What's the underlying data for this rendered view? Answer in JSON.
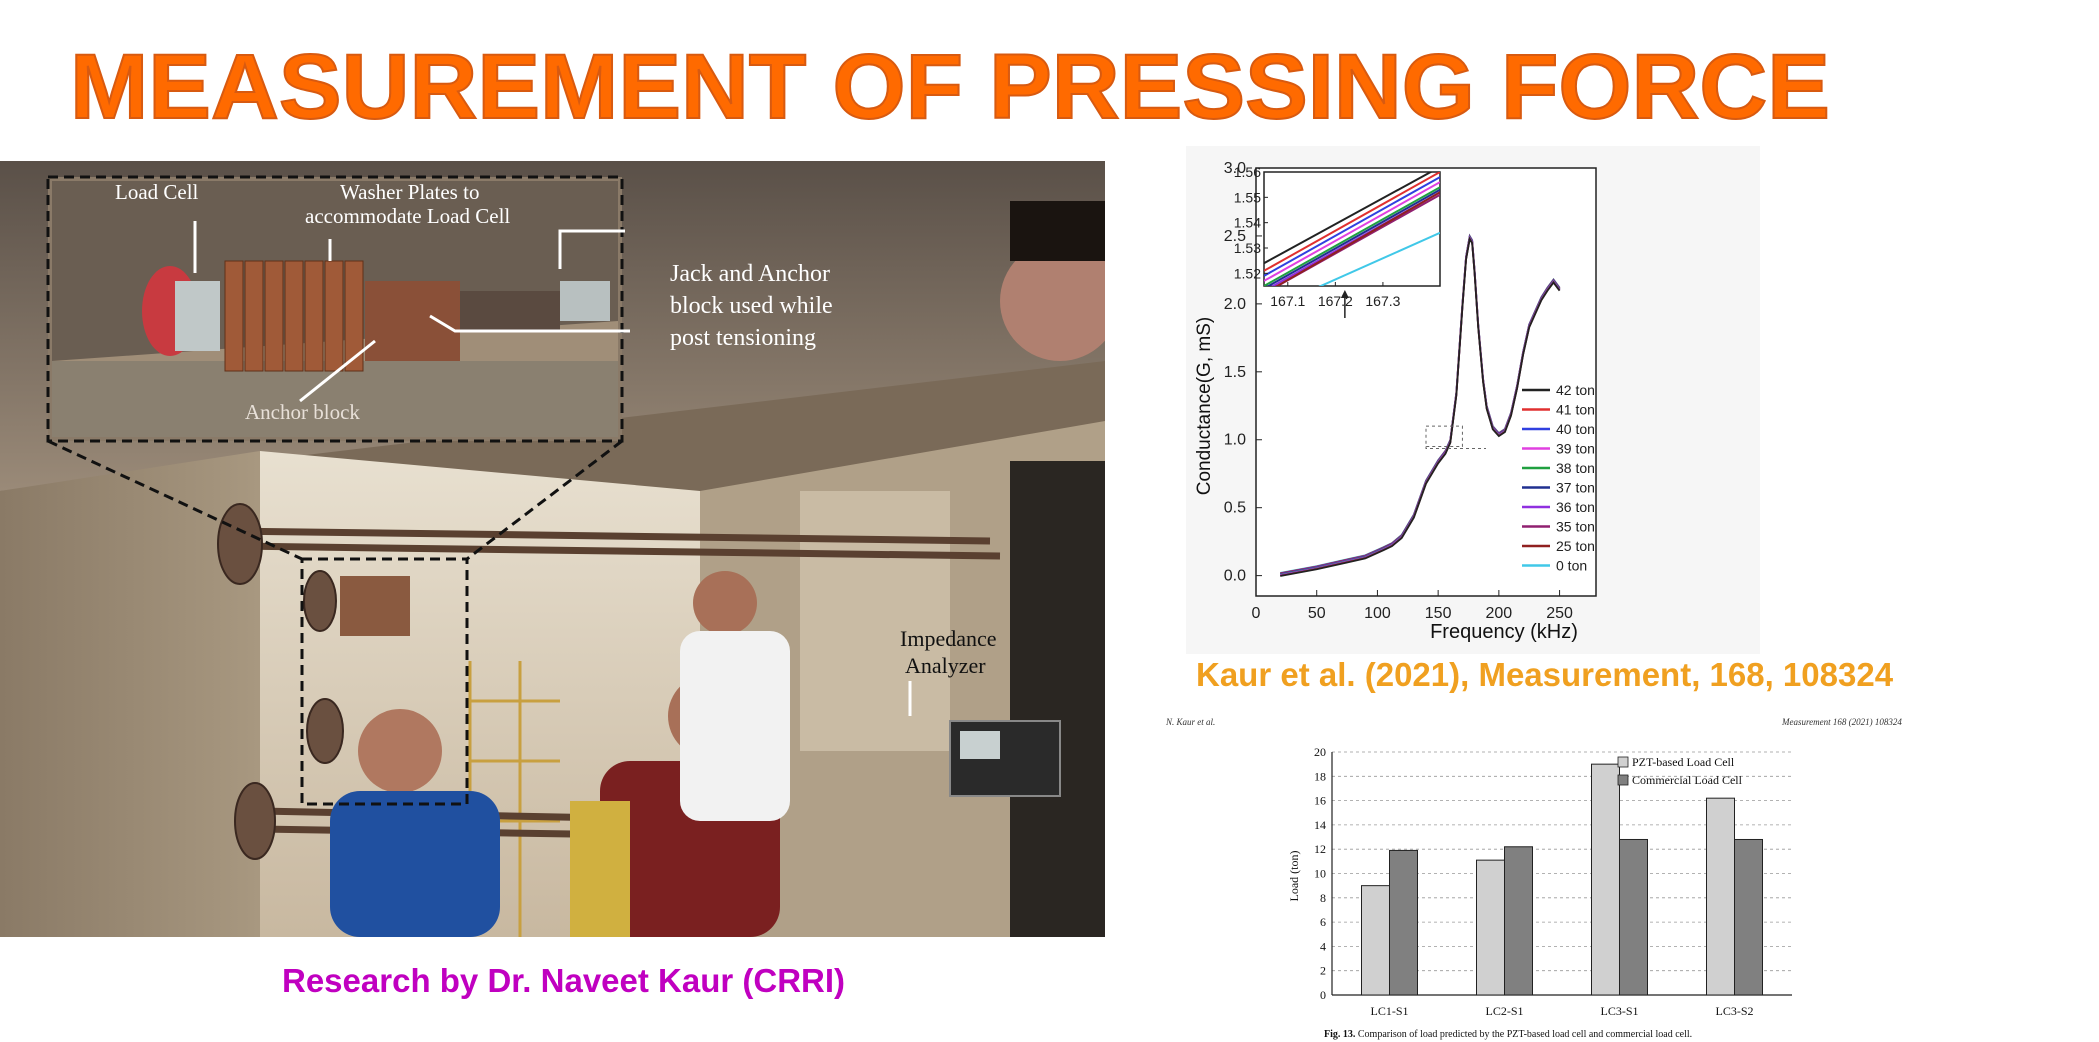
{
  "slide": {
    "title": "MEASUREMENT OF PRESSING FORCE",
    "caption_left": "Research by Dr. Naveet Kaur (CRRI)",
    "citation": "Kaur et al. (2021), Measurement, 168, 108324",
    "colors": {
      "title": "#ff6a00",
      "title_stroke": "#d85a10",
      "caption_left": "#c000c0",
      "citation": "#f0a020"
    }
  },
  "photo": {
    "labels": {
      "load_cell": "Load Cell",
      "washer_line1": "Washer Plates to",
      "washer_line2": "accommodate Load Cell",
      "jack_line1": "Jack and Anchor",
      "jack_line2": "block used while",
      "jack_line3": "post tensioning",
      "anchor_block": "Anchor block",
      "impedance_line1": "Impedance",
      "impedance_line2": "Analyzer"
    }
  },
  "paper": {
    "header_left": "N. Kaur et al.",
    "header_right": "Measurement 168 (2021) 108324",
    "fig_label": "Fig. 13.",
    "fig_caption": "Comparison of load predicted by the PZT-based load cell and commercial load cell."
  },
  "chart_data": [
    {
      "type": "line",
      "xlabel": "Frequency (kHz)",
      "ylabel": "Conductance(G, mS)",
      "xlim": [
        0,
        280
      ],
      "ylim": [
        -0.15,
        3.0
      ],
      "xticks": [
        "0",
        "50",
        "100",
        "150",
        "200",
        "250"
      ],
      "yticks": [
        "0.0",
        "0.5",
        "1.0",
        "1.5",
        "2.0",
        "2.5",
        "3.0"
      ],
      "legend_position": "right",
      "series": [
        {
          "name": "42 ton",
          "color": "#222222"
        },
        {
          "name": "41 ton",
          "color": "#e03030"
        },
        {
          "name": "40 ton",
          "color": "#3040e0"
        },
        {
          "name": "39 ton",
          "color": "#e040e0"
        },
        {
          "name": "38 ton",
          "color": "#20a040"
        },
        {
          "name": "37 ton",
          "color": "#203090"
        },
        {
          "name": "36 ton",
          "color": "#9030e0"
        },
        {
          "name": "35 ton",
          "color": "#902070"
        },
        {
          "name": "25 ton",
          "color": "#902020"
        },
        {
          "name": "0 ton",
          "color": "#40c8e8"
        }
      ],
      "curve": {
        "x": [
          20,
          50,
          75,
          90,
          100,
          105,
          112,
          120,
          130,
          140,
          150,
          156,
          160,
          165,
          170,
          173,
          176,
          178,
          180,
          183,
          187,
          190,
          195,
          200,
          205,
          210,
          215,
          220,
          225,
          230,
          235,
          240,
          245,
          250
        ],
        "y": [
          0.02,
          0.07,
          0.12,
          0.15,
          0.19,
          0.21,
          0.24,
          0.3,
          0.45,
          0.7,
          0.85,
          0.92,
          1.0,
          1.35,
          2.0,
          2.35,
          2.5,
          2.47,
          2.25,
          1.85,
          1.45,
          1.25,
          1.1,
          1.05,
          1.08,
          1.2,
          1.4,
          1.65,
          1.85,
          1.95,
          2.05,
          2.12,
          2.18,
          2.12
        ]
      },
      "inset": {
        "xlim": [
          167.05,
          167.42
        ],
        "ylim": [
          1.515,
          1.56
        ],
        "xticks": [
          "167.1",
          "167.2",
          "167.3"
        ],
        "yticks": [
          "1.52",
          "1.53",
          "1.54",
          "1.55",
          "1.56"
        ],
        "lines": [
          {
            "series": "42 ton",
            "y_at_start": 1.524,
            "y_at_end": 1.562
          },
          {
            "series": "41 ton",
            "y_at_start": 1.521,
            "y_at_end": 1.56
          },
          {
            "series": "40 ton",
            "y_at_start": 1.519,
            "y_at_end": 1.558
          },
          {
            "series": "39 ton",
            "y_at_start": 1.517,
            "y_at_end": 1.556
          },
          {
            "series": "38 ton",
            "y_at_start": 1.515,
            "y_at_end": 1.554
          },
          {
            "series": "37 ton",
            "y_at_start": 1.514,
            "y_at_end": 1.553
          },
          {
            "series": "36 ton",
            "y_at_start": 1.513,
            "y_at_end": 1.552
          },
          {
            "series": "35 ton",
            "y_at_start": 1.512,
            "y_at_end": 1.551
          },
          {
            "series": "25 ton",
            "y_at_start": 1.512,
            "y_at_end": 1.552
          },
          {
            "series": "0 ton",
            "y_at_start": 1.505,
            "y_at_end": 1.536
          }
        ]
      }
    },
    {
      "type": "bar",
      "ylabel": "Load (ton)",
      "ylim": [
        0,
        20
      ],
      "yticks": [
        "0",
        "2",
        "4",
        "6",
        "8",
        "10",
        "12",
        "14",
        "16",
        "18",
        "20"
      ],
      "categories": [
        "LC1-S1",
        "LC2-S1",
        "LC3-S1",
        "LC3-S2"
      ],
      "legend_position": "top-right",
      "grid": true,
      "series": [
        {
          "name": "PZT-based Load Cell",
          "values": [
            9.0,
            11.1,
            19.0,
            16.2
          ],
          "color": "#d0d0d0"
        },
        {
          "name": "Commercial Load Cell",
          "values": [
            11.9,
            12.2,
            12.8,
            12.8
          ],
          "color": "#808080"
        }
      ]
    }
  ]
}
